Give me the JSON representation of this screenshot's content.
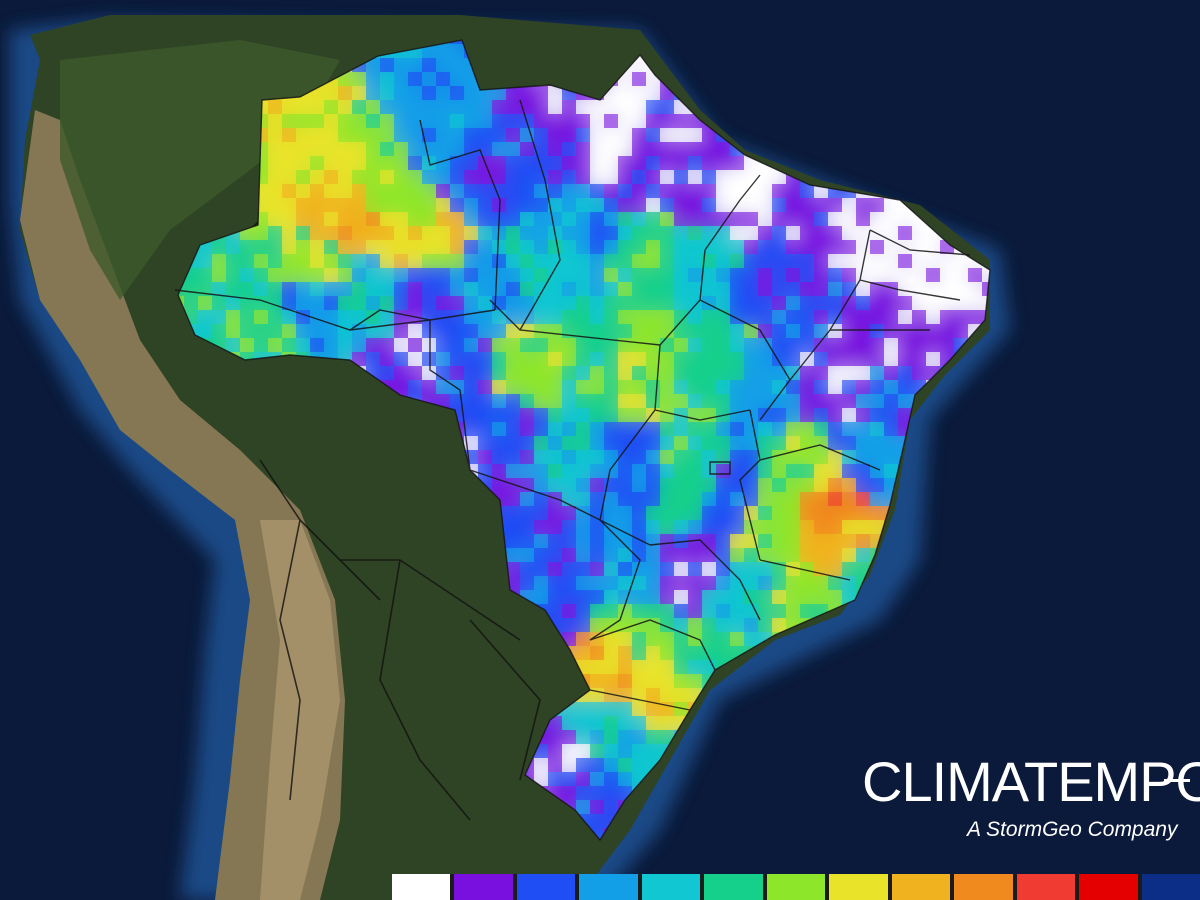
{
  "branding": {
    "logo_text": "CLIMATEMPO",
    "tagline": "A StormGeo Company"
  },
  "colors": {
    "top_bar": "#0a72c4",
    "ocean_deep": "#0b1a3a",
    "ocean_shelf": "#1d4f8f",
    "land_forest": "#2f4424",
    "land_andes": "#8a7a56",
    "borders": "#111111"
  },
  "legend": {
    "swatches": [
      "#ffffff",
      "#7a10e0",
      "#1f4ef5",
      "#139fe8",
      "#11c7d2",
      "#15d08a",
      "#8ee62a",
      "#e9e42a",
      "#f0b21f",
      "#f08a1f",
      "#ef3b31",
      "#e50000",
      "#0d2e86"
    ]
  },
  "map": {
    "region": "Brazil",
    "field_palette": [
      "#ffffff",
      "#7a10e0",
      "#1f4ef5",
      "#139fe8",
      "#11c7d2",
      "#15d08a",
      "#8ee62a",
      "#e9e42a",
      "#f0b21f",
      "#f08a1f",
      "#ef3b31"
    ]
  }
}
